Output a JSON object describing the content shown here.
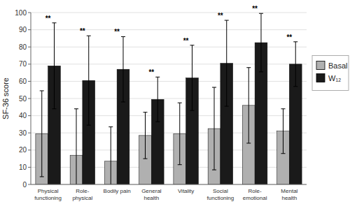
{
  "chart_data": {
    "type": "bar",
    "ylabel": "SF-36 score",
    "categories": [
      "Physical\nfunctioning",
      "Role-\nphysical",
      "Bodily pain",
      "General\nhealth",
      "Vitality",
      "Social\nfunctioning",
      "Role-\nemotional",
      "Mental\nhealth"
    ],
    "series": [
      {
        "name": "Basal",
        "color": "#b0b0b0",
        "values": [
          29.5,
          17.0,
          13.5,
          28.5,
          29.5,
          32.5,
          46.0,
          31.0
        ],
        "errors": [
          25.0,
          27.0,
          20.0,
          13.5,
          18.0,
          24.0,
          22.0,
          13.0
        ]
      },
      {
        "name": "W₁₂",
        "color": "#1a1a1a",
        "values": [
          69.0,
          60.5,
          67.0,
          49.5,
          62.0,
          70.5,
          82.5,
          70.0
        ],
        "errors": [
          25.0,
          26.0,
          19.0,
          13.0,
          19.0,
          25.0,
          17.0,
          13.0
        ]
      }
    ],
    "annotations": [
      {
        "text": "**",
        "category": "Physical\nfunctioning"
      },
      {
        "text": "**",
        "category": "Role-\nphysical"
      },
      {
        "text": "**",
        "category": "Bodily pain"
      },
      {
        "text": "**",
        "category": "General\nhealth"
      },
      {
        "text": "**",
        "category": "Vitality"
      },
      {
        "text": "**",
        "category": "Social\nfunctioning"
      },
      {
        "text": "**",
        "category": "Role-\nemotional"
      },
      {
        "text": "**",
        "category": "Mental\nhealth"
      }
    ],
    "ylim": [
      0,
      100
    ],
    "yticks": [
      0,
      10,
      20,
      30,
      40,
      50,
      60,
      70,
      80,
      90,
      100
    ],
    "grid": true,
    "legend": "right"
  }
}
